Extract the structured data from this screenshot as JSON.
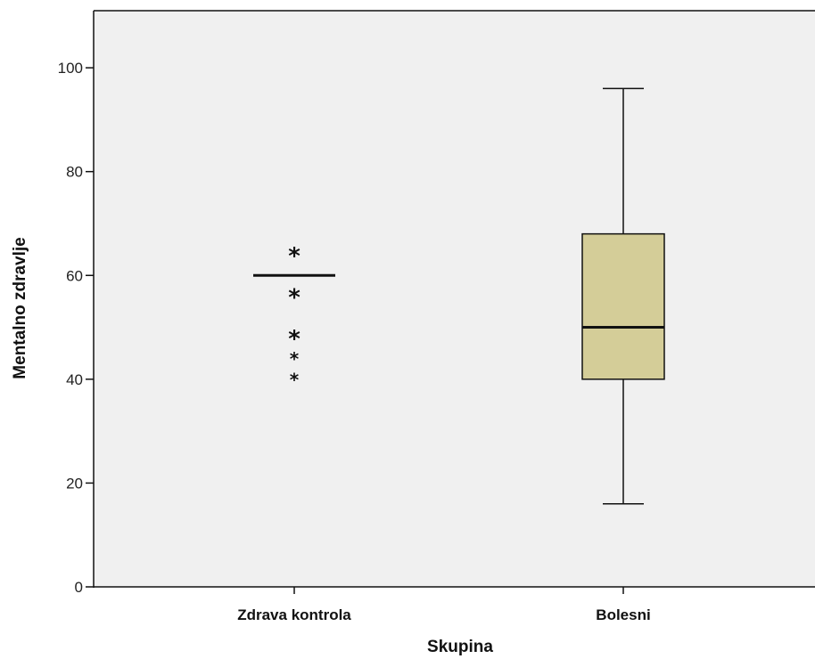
{
  "chart_data": {
    "type": "boxplot",
    "xlabel": "Skupina",
    "ylabel": "Mentalno zdravlje",
    "ylim": [
      0,
      111
    ],
    "yticks": [
      0,
      20,
      40,
      60,
      80,
      100
    ],
    "grid": false,
    "categories": [
      "Zdrava kontrola",
      "Bolesni"
    ],
    "boxes": [
      {
        "category": "Zdrava kontrola",
        "min": 60,
        "q1": 60,
        "median": 60,
        "q3": 60,
        "max": 60,
        "outliers": [
          64,
          56,
          48,
          44,
          40
        ],
        "outlier_marker": "*"
      },
      {
        "category": "Bolesni",
        "min": 16,
        "q1": 40,
        "median": 50,
        "q3": 68,
        "max": 96,
        "outliers": []
      }
    ],
    "colors": {
      "plot_background": "#f0f0f0",
      "box_fill": "#d4cd98",
      "line": "#111111"
    }
  }
}
